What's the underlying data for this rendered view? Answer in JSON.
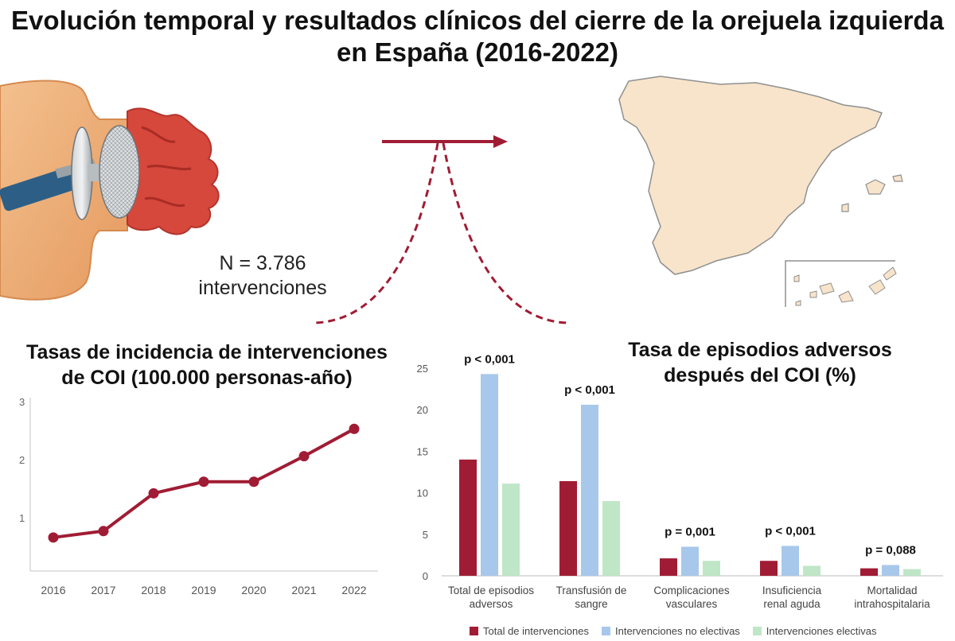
{
  "title_line1": "Evolución temporal y resultados clínicos del cierre de la orejuela izquierda",
  "title_line2": "en España (2016-2022)",
  "n_line1": "N = 3.786",
  "n_line2": "intervenciones",
  "colors": {
    "primary": "#a01c34",
    "light_blue": "#a7c8ea",
    "light_green": "#bfe6c7",
    "map_fill": "#f7e4cb"
  },
  "chart_data": [
    {
      "type": "line",
      "title_line1": "Tasas de incidencia de intervenciones",
      "title_line2": "de COI (100.000 personas-año)",
      "x": [
        "2016",
        "2017",
        "2018",
        "2019",
        "2020",
        "2021",
        "2022"
      ],
      "values": [
        0.66,
        0.77,
        1.42,
        1.62,
        1.62,
        2.06,
        2.53
      ],
      "yticks": [
        1,
        2,
        3
      ],
      "ylim": [
        0,
        3
      ],
      "grid": false
    },
    {
      "type": "bar",
      "title_line1": "Tasa de episodios adversos",
      "title_line2": "después del COI (%)",
      "categories": [
        {
          "line1": "Total de episodios",
          "line2": "adversos"
        },
        {
          "line1": "Transfusión de",
          "line2": "sangre"
        },
        {
          "line1": "Complicaciones",
          "line2": "vasculares"
        },
        {
          "line1": "Insuficiencia",
          "line2": "renal aguda"
        },
        {
          "line1": "Mortalidad",
          "line2": "intrahospitalaria"
        }
      ],
      "p_values": [
        "p < 0,001",
        "p  < 0,001",
        "p  = 0,001",
        "p < 0,001",
        "p  = 0,088"
      ],
      "series": [
        {
          "name": "Total de intervenciones",
          "values": [
            14.0,
            11.4,
            2.1,
            1.8,
            0.9
          ]
        },
        {
          "name": "Intervenciones no electivas",
          "values": [
            24.3,
            20.6,
            3.5,
            3.6,
            1.3
          ]
        },
        {
          "name": "Intervenciones electivas",
          "values": [
            11.1,
            9.0,
            1.8,
            1.2,
            0.8
          ]
        }
      ],
      "yticks": [
        0,
        5,
        10,
        15,
        20,
        25
      ],
      "ylim": [
        0,
        25
      ],
      "legend": "bottom",
      "grid": false
    }
  ]
}
